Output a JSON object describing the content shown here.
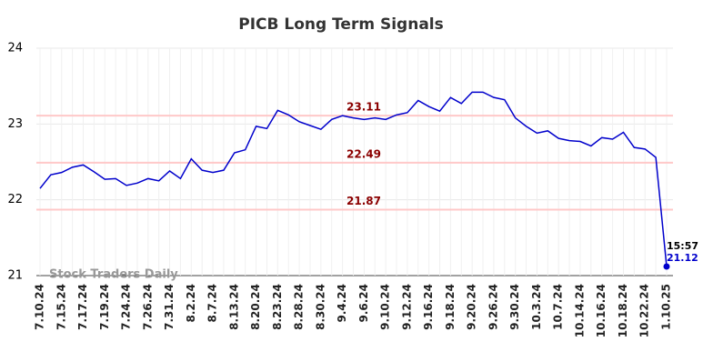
{
  "chart_data": {
    "type": "line",
    "title": "PICB Long Term Signals",
    "categories": [
      "7.10.24",
      null,
      "7.15.24",
      null,
      "7.17.24",
      null,
      "7.19.24",
      null,
      "7.24.24",
      null,
      "7.26.24",
      null,
      "7.31.24",
      null,
      "8.2.24",
      null,
      "8.7.24",
      null,
      "8.13.24",
      null,
      "8.20.24",
      null,
      "8.23.24",
      null,
      "8.28.24",
      null,
      "8.30.24",
      null,
      "9.4.24",
      null,
      "9.6.24",
      null,
      "9.10.24",
      null,
      "9.12.24",
      null,
      "9.16.24",
      null,
      "9.18.24",
      null,
      "9.20.24",
      null,
      "9.26.24",
      null,
      "9.30.24",
      null,
      "10.3.24",
      null,
      "10.7.24",
      null,
      "10.14.24",
      null,
      "10.16.24",
      null,
      "10.18.24",
      null,
      "10.22.24",
      null,
      "1.10.25"
    ],
    "series": [
      {
        "name": "PICB",
        "color": "#0000cc",
        "values": [
          22.15,
          22.33,
          22.36,
          22.43,
          22.46,
          22.37,
          22.27,
          22.28,
          22.19,
          22.22,
          22.28,
          22.25,
          22.38,
          22.28,
          22.54,
          22.39,
          22.36,
          22.39,
          22.62,
          22.66,
          22.97,
          22.94,
          23.18,
          23.12,
          23.03,
          22.98,
          22.93,
          23.06,
          23.11,
          23.08,
          23.06,
          23.08,
          23.06,
          23.12,
          23.15,
          23.31,
          23.23,
          23.17,
          23.35,
          23.27,
          23.42,
          23.42,
          23.35,
          23.32,
          23.08,
          22.97,
          22.88,
          22.91,
          22.81,
          22.78,
          22.77,
          22.71,
          22.82,
          22.8,
          22.89,
          22.69,
          22.67,
          22.56,
          21.12
        ]
      }
    ],
    "hlines": [
      23.11,
      22.49,
      21.87
    ],
    "hline_color": "#ffc8c8",
    "hline_label_color": "#8b0000",
    "annotation": "15:57",
    "watermark": "Stock Traders Daily",
    "ylim": [
      21,
      24
    ],
    "yticks": [
      21,
      22,
      23,
      24
    ],
    "grid": true
  }
}
